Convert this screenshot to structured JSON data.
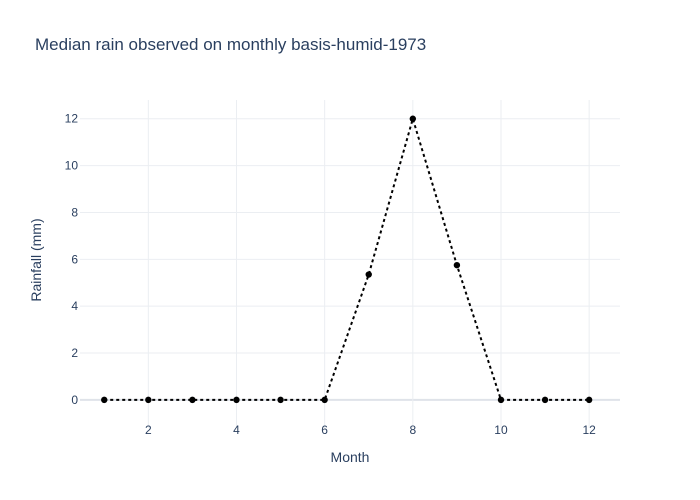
{
  "chart_data": {
    "type": "line",
    "title": "Median rain observed on monthly basis-humid-1973",
    "xlabel": "Month",
    "ylabel": "Rainfall (mm)",
    "x": [
      1,
      2,
      3,
      4,
      5,
      6,
      7,
      8,
      9,
      10,
      11,
      12
    ],
    "series": [
      {
        "values": [
          0,
          0,
          0,
          0,
          0,
          0,
          5.35,
          12,
          5.75,
          0,
          0,
          0
        ],
        "color": "#000000"
      }
    ],
    "xlim": [
      0.45,
      12.7
    ],
    "ylim": [
      -1.2,
      12.8
    ],
    "xticks": [
      2,
      4,
      6,
      8,
      10,
      12
    ],
    "yticks": [
      0,
      2,
      4,
      6,
      8,
      10,
      12
    ],
    "grid": true,
    "legend": "none"
  }
}
